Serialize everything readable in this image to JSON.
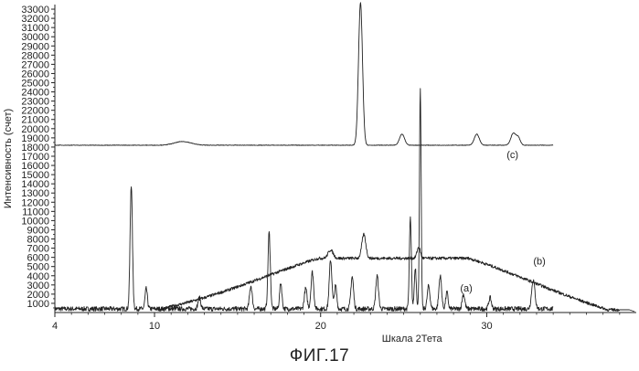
{
  "chart_data": {
    "type": "line",
    "xlabel": "Шкала 2Тета",
    "ylabel": "Интенсивность (счет)",
    "xlim": [
      4,
      39
    ],
    "ylim": [
      0,
      33500
    ],
    "x_ticks": [
      4,
      10,
      20,
      30
    ],
    "y_ticks": [
      1000,
      2000,
      3000,
      4000,
      5000,
      6000,
      7000,
      8000,
      9000,
      10000,
      11000,
      12000,
      13000,
      14000,
      15000,
      16000,
      17000,
      18000,
      19000,
      20000,
      21000,
      22000,
      23000,
      24000,
      25000,
      26000,
      27000,
      28000,
      29000,
      30000,
      31000,
      32000,
      33000
    ],
    "grid": false,
    "legend": "none",
    "series": [
      {
        "name": "(a)",
        "label_pos": [
          28.4,
          2300
        ],
        "baseline": 400,
        "x_range": [
          4,
          34
        ],
        "peaks": [
          [
            8.6,
            13500,
            0.07
          ],
          [
            9.5,
            2200,
            0.07
          ],
          [
            12.7,
            1200,
            0.08
          ],
          [
            15.8,
            2500,
            0.08
          ],
          [
            16.9,
            8300,
            0.07
          ],
          [
            17.6,
            2800,
            0.07
          ],
          [
            19.1,
            2200,
            0.08
          ],
          [
            19.5,
            4000,
            0.08
          ],
          [
            20.6,
            5300,
            0.08
          ],
          [
            20.9,
            2500,
            0.07
          ],
          [
            21.9,
            3500,
            0.08
          ],
          [
            23.4,
            3600,
            0.08
          ],
          [
            25.4,
            9800,
            0.06
          ],
          [
            25.7,
            4500,
            0.06
          ],
          [
            26.0,
            23800,
            0.05
          ],
          [
            26.5,
            2500,
            0.08
          ],
          [
            27.2,
            3600,
            0.08
          ],
          [
            27.6,
            1800,
            0.07
          ],
          [
            28.6,
            1600,
            0.08
          ],
          [
            30.2,
            1200,
            0.08
          ],
          [
            32.8,
            3100,
            0.1
          ]
        ]
      },
      {
        "name": "(b)",
        "label_pos": [
          32.8,
          5200
        ],
        "hump_start": 10.2,
        "hump_end": 38.6,
        "hump_max": 5600,
        "hump_center": 25.5,
        "peaks": [
          [
            22.6,
            2600,
            0.12
          ],
          [
            25.9,
            1200,
            0.1
          ],
          [
            20.6,
            900,
            0.15
          ]
        ]
      },
      {
        "name": "(c)",
        "label_pos": [
          31.2,
          16800
        ],
        "offset": 18200,
        "x_range": [
          4,
          34
        ],
        "peaks": [
          [
            11.7,
            400,
            0.5
          ],
          [
            22.4,
            15500,
            0.12
          ],
          [
            24.9,
            1200,
            0.15
          ],
          [
            29.4,
            1200,
            0.15
          ],
          [
            31.6,
            1300,
            0.15
          ],
          [
            31.9,
            800,
            0.12
          ]
        ]
      }
    ]
  },
  "figure": {
    "caption": "ФИГ.17"
  }
}
